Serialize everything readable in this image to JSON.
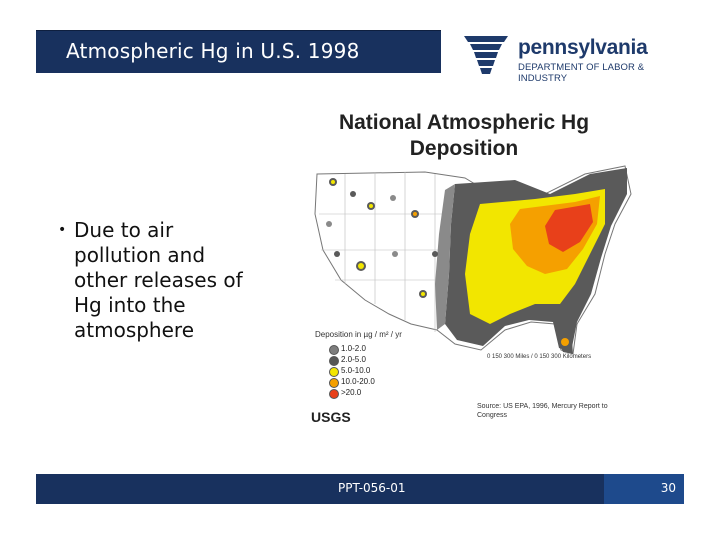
{
  "header": {
    "title": "Atmospheric Hg in U.S. 1998"
  },
  "logo": {
    "wordmark": "pennsylvania",
    "subtitle": "DEPARTMENT OF LABOR & INDUSTRY",
    "icon": "keystone-icon"
  },
  "body": {
    "bullet": "Due to air pollution and other releases of Hg into the atmosphere"
  },
  "figure": {
    "title": "National Atmospheric Hg Deposition",
    "legend_heading": "Deposition in µg / m² / yr",
    "legend": [
      {
        "label": "1.0-2.0",
        "color": "#7d7d7d"
      },
      {
        "label": "2.0-5.0",
        "color": "#555555"
      },
      {
        "label": "5.0-10.0",
        "color": "#f2e600"
      },
      {
        "label": "10.0-20.0",
        "color": "#f5a000"
      },
      {
        "label": ">20.0",
        "color": "#e8401a"
      }
    ],
    "scale_text": "0  150  300 Miles / 0 150 300 Kilometers",
    "logo": "USGS",
    "source": "Source: US EPA, 1996, Mercury Report to Congress"
  },
  "footer": {
    "code": "PPT-056-01",
    "page": "30"
  }
}
